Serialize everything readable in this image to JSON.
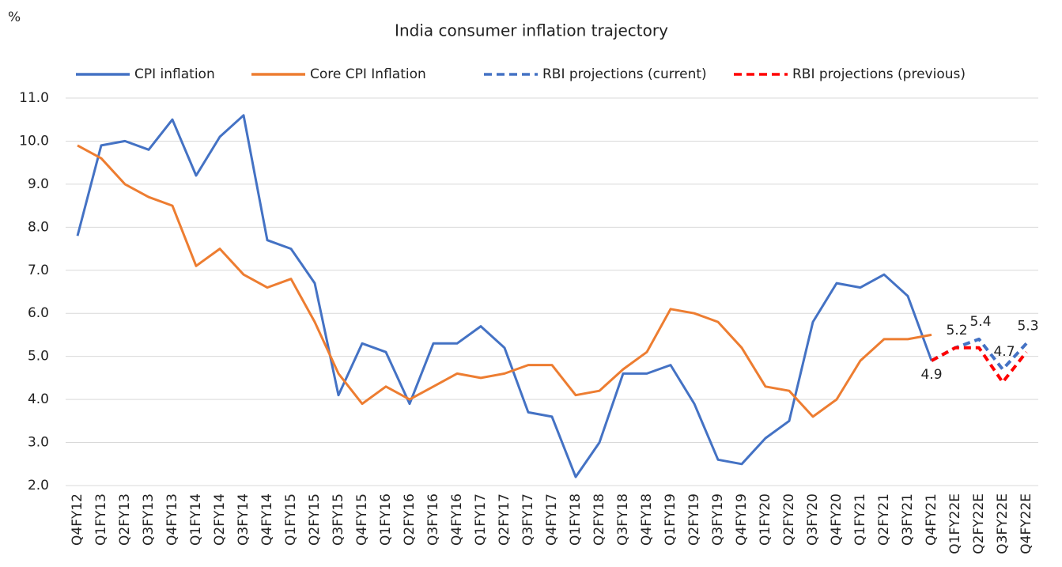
{
  "chart_data": {
    "type": "line",
    "title": "India consumer inflation trajectory",
    "y_label": "%",
    "categories": [
      "Q4FY12",
      "Q1FY13",
      "Q2FY13",
      "Q3FY13",
      "Q4FY13",
      "Q1FY14",
      "Q2FY14",
      "Q3FY14",
      "Q4FY14",
      "Q1FY15",
      "Q2FY15",
      "Q3FY15",
      "Q4FY15",
      "Q1FY16",
      "Q2FY16",
      "Q3FY16",
      "Q4FY16",
      "Q1FY17",
      "Q2FY17",
      "Q3FY17",
      "Q4FY17",
      "Q1FY18",
      "Q2FY18",
      "Q3FY18",
      "Q4FY18",
      "Q1FY19",
      "Q2FY19",
      "Q3FY19",
      "Q4FY19",
      "Q1FY20",
      "Q2FY20",
      "Q3FY20",
      "Q4FY20",
      "Q1FY21",
      "Q2FY21",
      "Q3FY21",
      "Q4FY21",
      "Q1FY22E",
      "Q2FY22E",
      "Q3FY22E",
      "Q4FY22E"
    ],
    "series": [
      {
        "name": "CPI inflation",
        "color": "#4472c4",
        "dash": false,
        "values": [
          7.8,
          9.9,
          10.0,
          9.8,
          10.5,
          9.2,
          10.1,
          10.6,
          7.7,
          7.5,
          6.7,
          4.1,
          5.3,
          5.1,
          3.9,
          5.3,
          5.3,
          5.7,
          5.2,
          3.7,
          3.6,
          2.2,
          3.0,
          4.6,
          4.6,
          4.8,
          3.9,
          2.6,
          2.5,
          3.1,
          3.5,
          5.8,
          6.7,
          6.6,
          6.9,
          6.4,
          4.9,
          null,
          null,
          null,
          null
        ]
      },
      {
        "name": "Core CPI Inflation",
        "color": "#ed7d31",
        "dash": false,
        "values": [
          9.9,
          9.6,
          9.0,
          8.7,
          8.5,
          7.1,
          7.5,
          6.9,
          6.6,
          6.8,
          5.8,
          4.6,
          3.9,
          4.3,
          4.0,
          4.3,
          4.6,
          4.5,
          4.6,
          4.8,
          4.8,
          4.1,
          4.2,
          4.7,
          5.1,
          6.1,
          6.0,
          5.8,
          5.2,
          4.3,
          4.2,
          3.6,
          4.0,
          4.9,
          5.4,
          5.4,
          5.5,
          null,
          null,
          null,
          null
        ]
      },
      {
        "name": "RBI projections (current)",
        "color": "#4472c4",
        "dash": true,
        "data_labels": true,
        "values": [
          null,
          null,
          null,
          null,
          null,
          null,
          null,
          null,
          null,
          null,
          null,
          null,
          null,
          null,
          null,
          null,
          null,
          null,
          null,
          null,
          null,
          null,
          null,
          null,
          null,
          null,
          null,
          null,
          null,
          null,
          null,
          null,
          null,
          null,
          null,
          null,
          4.9,
          5.2,
          5.4,
          4.7,
          5.3
        ]
      },
      {
        "name": "RBI projections (previous)",
        "color": "#ff0000",
        "dash": true,
        "values": [
          null,
          null,
          null,
          null,
          null,
          null,
          null,
          null,
          null,
          null,
          null,
          null,
          null,
          null,
          null,
          null,
          null,
          null,
          null,
          null,
          null,
          null,
          null,
          null,
          null,
          null,
          null,
          null,
          null,
          null,
          null,
          null,
          null,
          null,
          null,
          null,
          4.9,
          5.2,
          5.2,
          4.4,
          5.1
        ]
      }
    ],
    "ylim": [
      2,
      11
    ],
    "yticks": [
      {
        "value": 2,
        "label": "2.0"
      },
      {
        "value": 3,
        "label": "3.0"
      },
      {
        "value": 4,
        "label": "4.0"
      },
      {
        "value": 5,
        "label": "5.0"
      },
      {
        "value": 6,
        "label": "6.0"
      },
      {
        "value": 7,
        "label": "7.0"
      },
      {
        "value": 8,
        "label": "8.0"
      },
      {
        "value": 9,
        "label": "9.0"
      },
      {
        "value": 10,
        "label": "10.0"
      },
      {
        "value": 11,
        "label": "11.0"
      }
    ],
    "grid": true,
    "legend": "top"
  }
}
